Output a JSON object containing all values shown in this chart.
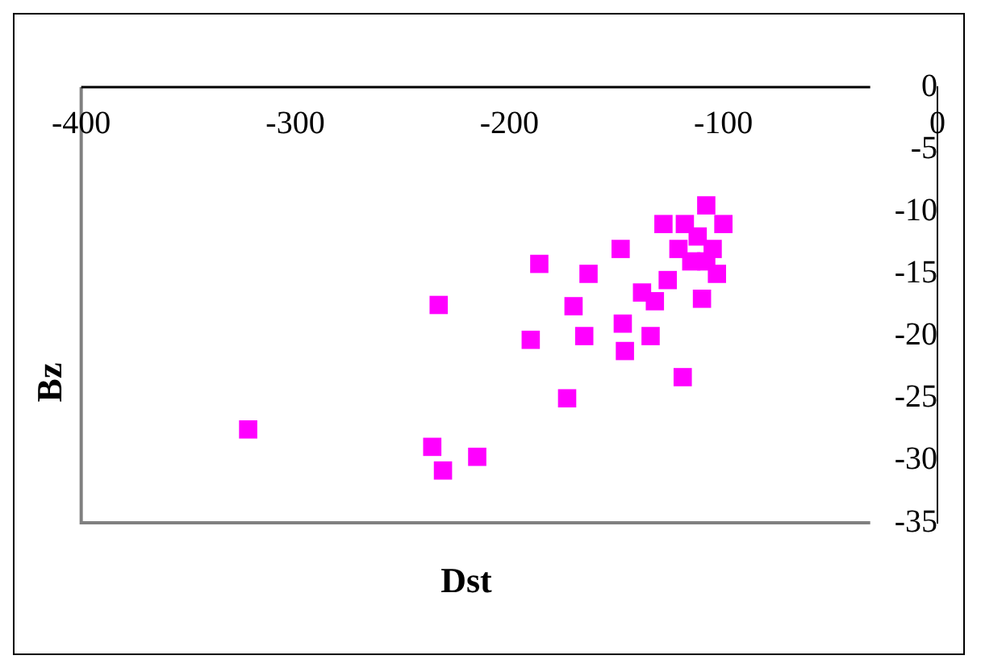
{
  "chart_data": {
    "type": "scatter",
    "xlabel": "Dst",
    "ylabel": "Bz",
    "xlim": [
      -400,
      0
    ],
    "ylim": [
      -35,
      0
    ],
    "xticks": [
      -400,
      -300,
      -200,
      -100,
      0
    ],
    "yticks": [
      0,
      -5,
      -10,
      -15,
      -20,
      -25,
      -30,
      -35
    ],
    "grid": false,
    "legend": false,
    "marker": "square",
    "series": [
      {
        "color": "#ff00ff",
        "x": [
          -322,
          -236,
          -231,
          -215,
          -233,
          -190,
          -186,
          -173,
          -170,
          -165,
          -163,
          -148,
          -147,
          -146,
          -138,
          -134,
          -132,
          -126,
          -128,
          -118,
          -119,
          -121,
          -108,
          -100,
          -110,
          -115,
          -105,
          -103,
          -112,
          -108
        ],
        "values": [
          -27.5,
          -28.9,
          -30.8,
          -29.7,
          -17.5,
          -20.3,
          -14.2,
          -25,
          -17.6,
          -20,
          -15,
          -13,
          -19,
          -21.2,
          -16.5,
          -20,
          -17.2,
          -15.5,
          -11,
          -11,
          -23.3,
          -13,
          -9.5,
          -11,
          -17,
          -14,
          -13,
          -15,
          -12,
          -14
        ]
      }
    ]
  }
}
